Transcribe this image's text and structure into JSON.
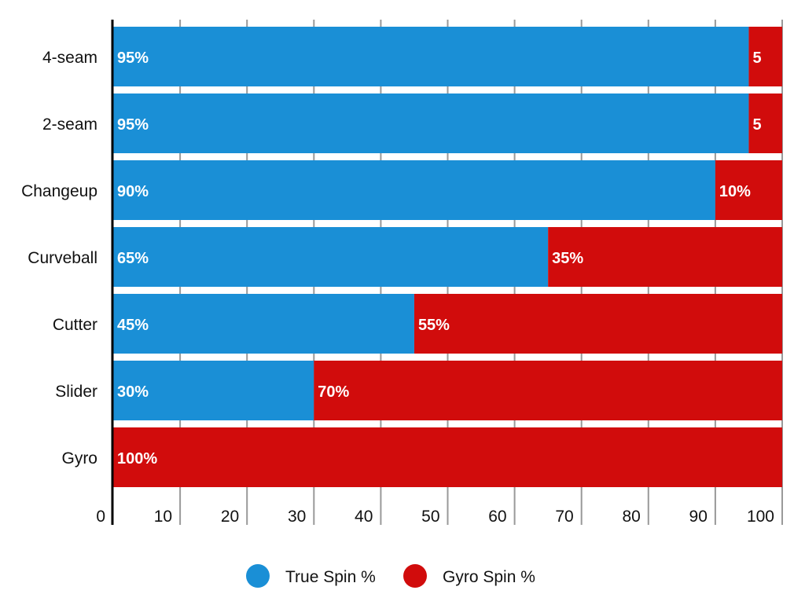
{
  "chart_data": {
    "type": "bar",
    "orientation": "horizontal",
    "stacked": true,
    "categories": [
      "4-seam",
      "2-seam",
      "Changeup",
      "Curveball",
      "Cutter",
      "Slider",
      "Gyro"
    ],
    "series": [
      {
        "name": "True Spin %",
        "color": "#1a8fd6",
        "values": [
          95,
          95,
          90,
          65,
          45,
          30,
          0
        ],
        "labels": [
          "95%",
          "95%",
          "90%",
          "65%",
          "45%",
          "30%",
          ""
        ]
      },
      {
        "name": "Gyro Spin %",
        "color": "#d10c0c",
        "values": [
          5,
          5,
          10,
          35,
          55,
          70,
          100
        ],
        "labels": [
          "5",
          "5",
          "10%",
          "35%",
          "55%",
          "70%",
          "100%"
        ]
      }
    ],
    "xlim": [
      0,
      100
    ],
    "xticks": [
      "0",
      "10",
      "20",
      "30",
      "40",
      "50",
      "60",
      "70",
      "80",
      "90",
      "100"
    ],
    "grid": true,
    "legend": "bottom-center"
  }
}
